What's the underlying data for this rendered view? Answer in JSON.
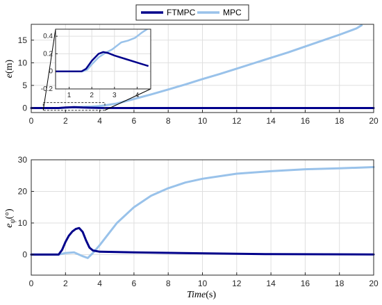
{
  "colors": {
    "ftmpc": "#00008b",
    "mpc": "#99c2ea",
    "axis": "#262626",
    "grid": "#dfdfdf",
    "zoom_box": "#333333"
  },
  "legend": {
    "items": [
      {
        "label": "FTMPC",
        "color": "#00008b"
      },
      {
        "label": "MPC",
        "color": "#99c2ea"
      }
    ],
    "placement": "top-center"
  },
  "chart_data": [
    {
      "id": "top",
      "type": "line",
      "ylabel": "e(m)",
      "xlabel": "",
      "xlim": [
        0,
        20
      ],
      "ylim": [
        -1,
        18.5
      ],
      "xticks": [
        0,
        2,
        4,
        6,
        8,
        10,
        12,
        14,
        16,
        18,
        20
      ],
      "yticks": [
        0,
        5,
        10,
        15
      ],
      "grid": true,
      "series": [
        {
          "name": "FTMPC",
          "x": [
            0,
            1.6,
            2.0,
            2.5,
            3.0,
            4.0,
            6.0,
            10.0,
            20.0
          ],
          "y": [
            0,
            0,
            0.1,
            0.2,
            0.1,
            0.02,
            0.0,
            0.0,
            0.0
          ]
        },
        {
          "name": "MPC",
          "x": [
            0,
            1.6,
            2.5,
            3.5,
            4.0,
            4.5,
            5.0,
            6.0,
            7.0,
            8.0,
            9.0,
            10.0,
            11.0,
            12.0,
            13.0,
            14.0,
            15.0,
            16.0,
            17.0,
            18.0,
            19.0,
            19.3
          ],
          "y": [
            0,
            0,
            0.2,
            0.3,
            0.45,
            0.7,
            1.0,
            2.0,
            3.0,
            4.1,
            5.2,
            6.4,
            7.5,
            8.7,
            9.9,
            11.1,
            12.3,
            13.6,
            14.9,
            16.2,
            17.6,
            18.3
          ]
        }
      ],
      "inset": {
        "xlim": [
          0.4,
          4.6
        ],
        "ylim": [
          -0.2,
          0.48
        ],
        "xticks": [
          1,
          2,
          3,
          4
        ],
        "yticks": [
          -0.2,
          0,
          0.2,
          0.4
        ],
        "ytick_labels": [
          "-0.2",
          "0",
          "0.2",
          "0.4"
        ],
        "source_xlim": [
          0.7,
          4.3
        ],
        "source_ylim": [
          -0.5,
          1.2
        ],
        "series": [
          {
            "name": "FTMPC",
            "x": [
              0.4,
              1.55,
              1.75,
              2.0,
              2.3,
              2.5,
              2.7,
              3.0,
              3.5,
              4.0,
              4.5
            ],
            "y": [
              0,
              0,
              0.03,
              0.12,
              0.2,
              0.22,
              0.21,
              0.18,
              0.14,
              0.1,
              0.06
            ]
          },
          {
            "name": "MPC",
            "x": [
              0.4,
              1.6,
              1.8,
              2.0,
              2.3,
              2.6,
              2.9,
              3.3,
              3.6,
              3.9,
              4.2,
              4.5
            ],
            "y": [
              0,
              0,
              0.02,
              0.08,
              0.16,
              0.21,
              0.25,
              0.33,
              0.35,
              0.38,
              0.44,
              0.49
            ]
          }
        ]
      }
    },
    {
      "id": "bottom",
      "type": "line",
      "ylabel": "eψ(°)",
      "xlabel": "Time(s)",
      "xlim": [
        0,
        20
      ],
      "ylim": [
        -6.5,
        30
      ],
      "xticks": [
        0,
        2,
        4,
        6,
        8,
        10,
        12,
        14,
        16,
        18,
        20
      ],
      "yticks": [
        0,
        10,
        20,
        30
      ],
      "grid": true,
      "series": [
        {
          "name": "FTMPC",
          "x": [
            0,
            1.6,
            1.8,
            2.0,
            2.2,
            2.4,
            2.6,
            2.8,
            3.0,
            3.2,
            3.4,
            3.6,
            4.0,
            6.0,
            10.0,
            14.0,
            20.0
          ],
          "y": [
            0,
            0,
            1.5,
            4.0,
            6.0,
            7.3,
            8.1,
            8.4,
            7.2,
            4.5,
            2.2,
            1.3,
            0.9,
            0.7,
            0.4,
            0.15,
            0.05
          ]
        },
        {
          "name": "MPC",
          "x": [
            0,
            1.6,
            2.0,
            2.5,
            3.0,
            3.3,
            3.6,
            4.0,
            4.5,
            5.0,
            6.0,
            7.0,
            8.0,
            9.0,
            10.0,
            12.0,
            14.0,
            16.0,
            18.0,
            20.0
          ],
          "y": [
            0,
            0,
            0.5,
            0.7,
            -0.5,
            -1.1,
            0.5,
            3.0,
            6.5,
            10.0,
            15.0,
            18.6,
            21.0,
            22.8,
            24.0,
            25.6,
            26.4,
            27.0,
            27.3,
            27.7
          ]
        }
      ]
    }
  ]
}
